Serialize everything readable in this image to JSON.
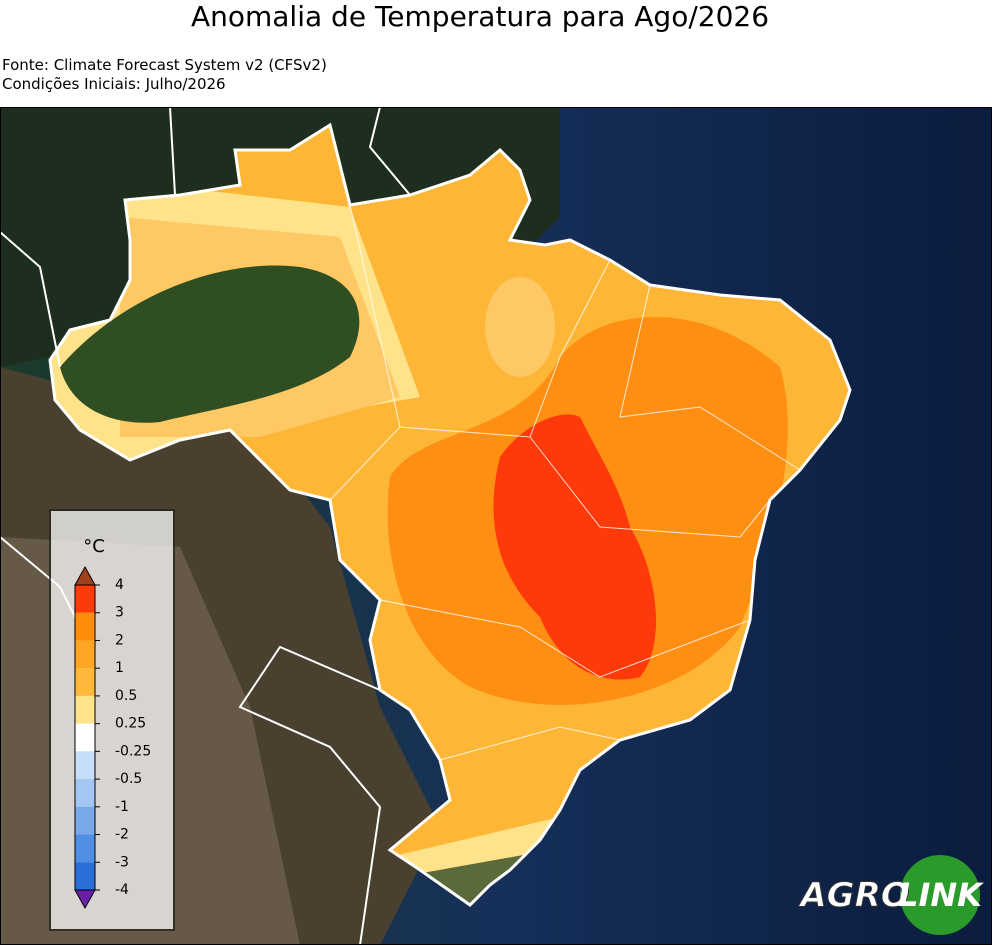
{
  "header": {
    "title": "Anomalia de Temperatura para Ago/2026",
    "source": "Fonte: Climate Forecast System v2 (CFSv2)",
    "initial_conditions": "Condições Iniciais: Julho/2026"
  },
  "colorbar": {
    "unit": "°C",
    "ticks": [
      4,
      3,
      2,
      1,
      0.5,
      0.25,
      -0.25,
      -0.5,
      -1,
      -2,
      -3,
      -4
    ],
    "colors": [
      "#ff3a0a",
      "#ff8c0a",
      "#ffa526",
      "#ffb83a",
      "#ffe38a",
      "#ffffff",
      "#c6defa",
      "#a3c6f2",
      "#7aa9ea",
      "#4f8ee2",
      "#2a6fd8"
    ],
    "over_color": "#a0401a",
    "under_color": "#6a1fa8"
  },
  "logo": {
    "left": "AGRO",
    "right": "LINK"
  }
}
